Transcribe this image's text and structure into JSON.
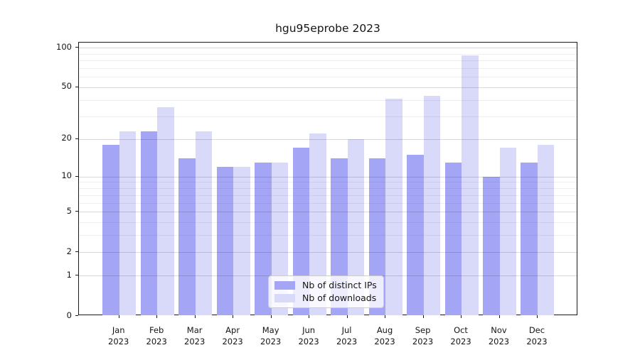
{
  "chart_data": {
    "type": "bar",
    "title": "hgu95eprobe 2023",
    "categories": [
      "Jan",
      "Feb",
      "Mar",
      "Apr",
      "May",
      "Jun",
      "Jul",
      "Aug",
      "Sep",
      "Oct",
      "Nov",
      "Dec"
    ],
    "year": "2023",
    "series": [
      {
        "name": "Nb of distinct IPs",
        "color": "#a5a5f6",
        "values": [
          18,
          23,
          14,
          12,
          13,
          17,
          14,
          14,
          15,
          13,
          10,
          13
        ]
      },
      {
        "name": "Nb of downloads",
        "color": "#d9d9f9",
        "values": [
          23,
          35,
          23,
          12,
          13,
          22,
          20,
          41,
          43,
          87,
          17,
          18
        ]
      }
    ],
    "yscale": "log1p",
    "ylim": [
      0,
      108
    ],
    "y_ticks": [
      0,
      1,
      2,
      5,
      10,
      20,
      50,
      100
    ],
    "y_minor_ticks": [
      3,
      4,
      6,
      7,
      8,
      9,
      30,
      40,
      60,
      70,
      80,
      90
    ],
    "xlabel": "",
    "ylabel": "",
    "grid": true,
    "legend": {
      "position": "lower center",
      "entries": [
        "Nb of distinct IPs",
        "Nb of downloads"
      ]
    }
  }
}
